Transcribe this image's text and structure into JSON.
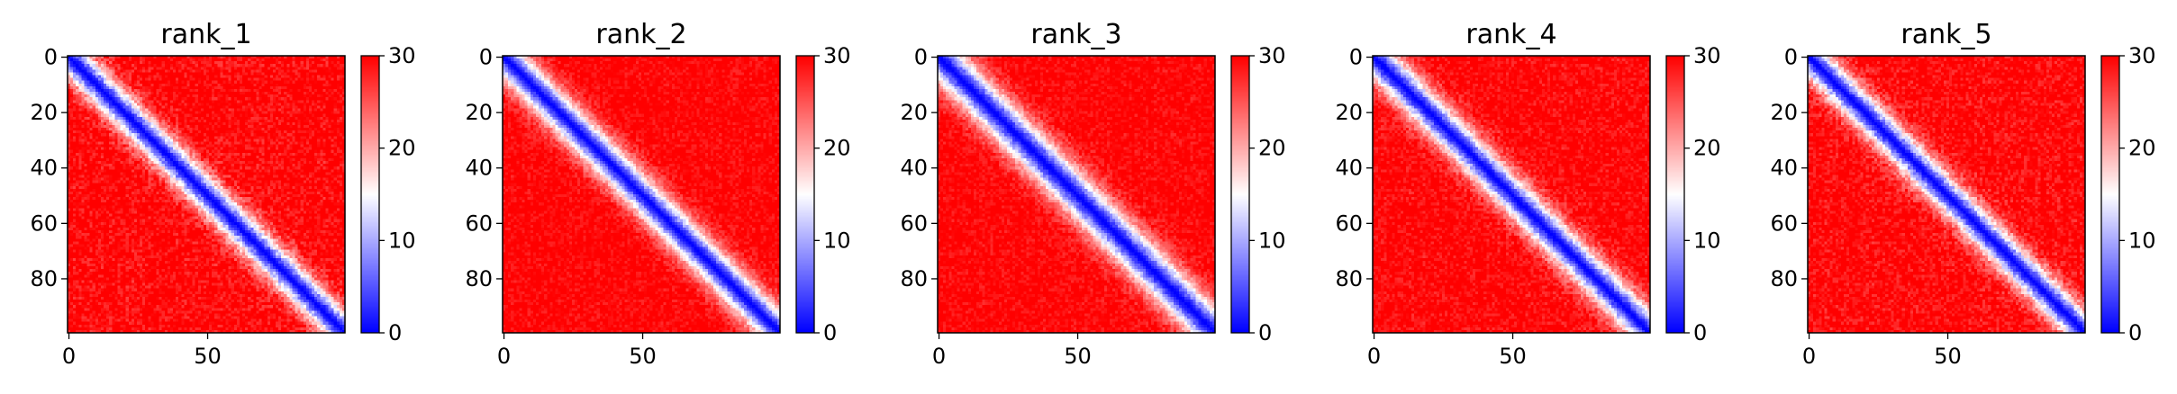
{
  "chart_data": [
    {
      "type": "heatmap",
      "title": "rank_1",
      "xlim": [
        0,
        99
      ],
      "ylim": [
        99,
        0
      ],
      "x_ticks": [
        "0",
        "50"
      ],
      "y_ticks": [
        "0",
        "20",
        "40",
        "60",
        "80"
      ],
      "colorbar": {
        "colormap": "bwr",
        "range": [
          0,
          30
        ],
        "ticks": [
          "0",
          "10",
          "20",
          "30"
        ]
      },
      "diagonal_band_width": 7.5,
      "off_diagonal_value": 30,
      "noise": 0.35
    },
    {
      "type": "heatmap",
      "title": "rank_2",
      "xlim": [
        0,
        99
      ],
      "ylim": [
        99,
        0
      ],
      "x_ticks": [
        "0",
        "50"
      ],
      "y_ticks": [
        "0",
        "20",
        "40",
        "60",
        "80"
      ],
      "colorbar": {
        "colormap": "bwr",
        "range": [
          0,
          30
        ],
        "ticks": [
          "0",
          "10",
          "20",
          "30"
        ]
      },
      "diagonal_band_width": 8,
      "off_diagonal_value": 30,
      "noise": 0.25
    },
    {
      "type": "heatmap",
      "title": "rank_3",
      "xlim": [
        0,
        99
      ],
      "ylim": [
        99,
        0
      ],
      "x_ticks": [
        "0",
        "50"
      ],
      "y_ticks": [
        "0",
        "20",
        "40",
        "60",
        "80"
      ],
      "colorbar": {
        "colormap": "bwr",
        "range": [
          0,
          30
        ],
        "ticks": [
          "0",
          "10",
          "20",
          "30"
        ]
      },
      "diagonal_band_width": 9,
      "off_diagonal_value": 30,
      "noise": 0.25
    },
    {
      "type": "heatmap",
      "title": "rank_4",
      "xlim": [
        0,
        99
      ],
      "ylim": [
        99,
        0
      ],
      "x_ticks": [
        "0",
        "50"
      ],
      "y_ticks": [
        "0",
        "20",
        "40",
        "60",
        "80"
      ],
      "colorbar": {
        "colormap": "bwr",
        "range": [
          0,
          30
        ],
        "ticks": [
          "0",
          "10",
          "20",
          "30"
        ]
      },
      "diagonal_band_width": 8,
      "off_diagonal_value": 30,
      "noise": 0.3
    },
    {
      "type": "heatmap",
      "title": "rank_5",
      "xlim": [
        0,
        99
      ],
      "ylim": [
        99,
        0
      ],
      "x_ticks": [
        "0",
        "50"
      ],
      "y_ticks": [
        "0",
        "20",
        "40",
        "60",
        "80"
      ],
      "colorbar": {
        "colormap": "bwr",
        "range": [
          0,
          30
        ],
        "ticks": [
          "0",
          "10",
          "20",
          "30"
        ]
      },
      "diagonal_band_width": 7.5,
      "off_diagonal_value": 30,
      "noise": 0.35
    }
  ]
}
